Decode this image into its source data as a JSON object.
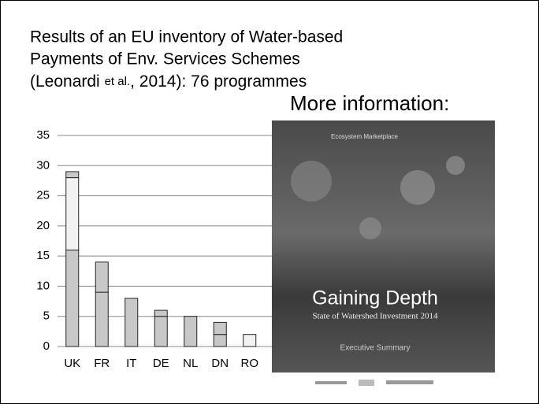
{
  "slide": {
    "title_lines": [
      "Results of an EU inventory of Water-based",
      "Payments of Env. Services Schemes"
    ],
    "title_line3": [
      "(Leonardi ",
      "et al.",
      ", 2014):  76 programmes"
    ],
    "more_info": "More information:",
    "cover": {
      "brand": "Ecosystem Marketplace",
      "title": "Gaining Depth",
      "subtitle": "State of Watershed Investment 2014",
      "label": "Executive Summary"
    }
  },
  "chart_data": {
    "type": "stacked_bar",
    "categories": [
      "UK",
      "FR",
      "IT",
      "DE",
      "NL",
      "DN",
      "RO"
    ],
    "series": [
      {
        "color": "#c8c8c8",
        "values": [
          16,
          9,
          8,
          5,
          5,
          2,
          0
        ]
      },
      {
        "color": "#f2f2f2",
        "values": [
          12,
          0,
          0,
          0,
          0,
          0,
          2
        ]
      },
      {
        "color": "#c8c8c8",
        "values": [
          1,
          5,
          0,
          1,
          0,
          2,
          0
        ]
      }
    ],
    "ylim": [
      0,
      35
    ],
    "yticks": [
      0,
      5,
      10,
      15,
      20,
      25,
      30,
      35
    ],
    "grid": true
  }
}
